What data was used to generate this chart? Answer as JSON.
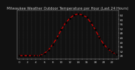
{
  "title": "Milwaukee Weather Outdoor Temperature per Hour (Last 24 Hours)",
  "hours": [
    0,
    1,
    2,
    3,
    4,
    5,
    6,
    7,
    8,
    9,
    10,
    11,
    12,
    13,
    14,
    15,
    16,
    17,
    18,
    19,
    20,
    21,
    22,
    23
  ],
  "temps": [
    28,
    28,
    28,
    28,
    28,
    28,
    30,
    33,
    38,
    44,
    51,
    57,
    61,
    64,
    65,
    64,
    62,
    57,
    51,
    44,
    38,
    34,
    31,
    29
  ],
  "line_color": "#cc0000",
  "marker_color": "#000000",
  "bg_color": "#111111",
  "plot_bg_color": "#111111",
  "grid_color": "#555555",
  "text_color": "#cccccc",
  "ylim_min": 25,
  "ylim_max": 68,
  "ytick_values": [
    28,
    32,
    36,
    40,
    44,
    48,
    52,
    56,
    60,
    64
  ],
  "ytick_labels": [
    "28",
    "32",
    "36",
    "40",
    "44",
    "48",
    "52",
    "56",
    "60",
    "64"
  ],
  "title_fontsize": 3.8,
  "tick_fontsize": 3.0,
  "line_width": 1.0,
  "marker_size": 1.8
}
